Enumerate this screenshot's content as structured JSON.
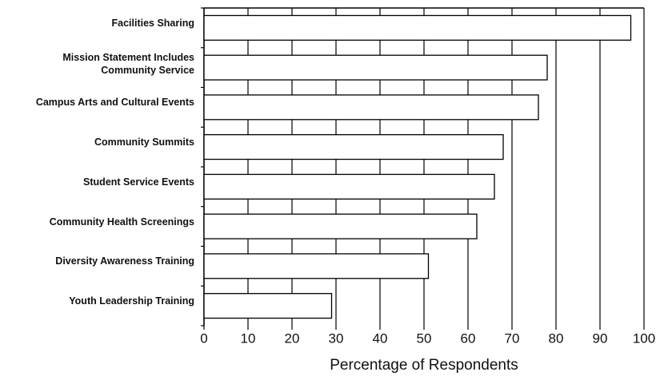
{
  "chart_data": {
    "type": "bar",
    "orientation": "horizontal",
    "x_label": "Percentage of Respondents",
    "categories": [
      "Facilities Sharing",
      "Mission Statement Includes\nCommunity Service",
      "Campus Arts and Cultural Events",
      "Community Summits",
      "Student Service Events",
      "Community Health Screenings",
      "Diversity Awareness Training",
      "Youth Leadership Training"
    ],
    "values": [
      97,
      78,
      76,
      68,
      66,
      62,
      51,
      29
    ],
    "color": "#ffffff",
    "xlim": [
      0,
      100
    ],
    "xticks": [
      0,
      10,
      20,
      30,
      40,
      50,
      60,
      70,
      80,
      90,
      100
    ],
    "grid": true
  }
}
